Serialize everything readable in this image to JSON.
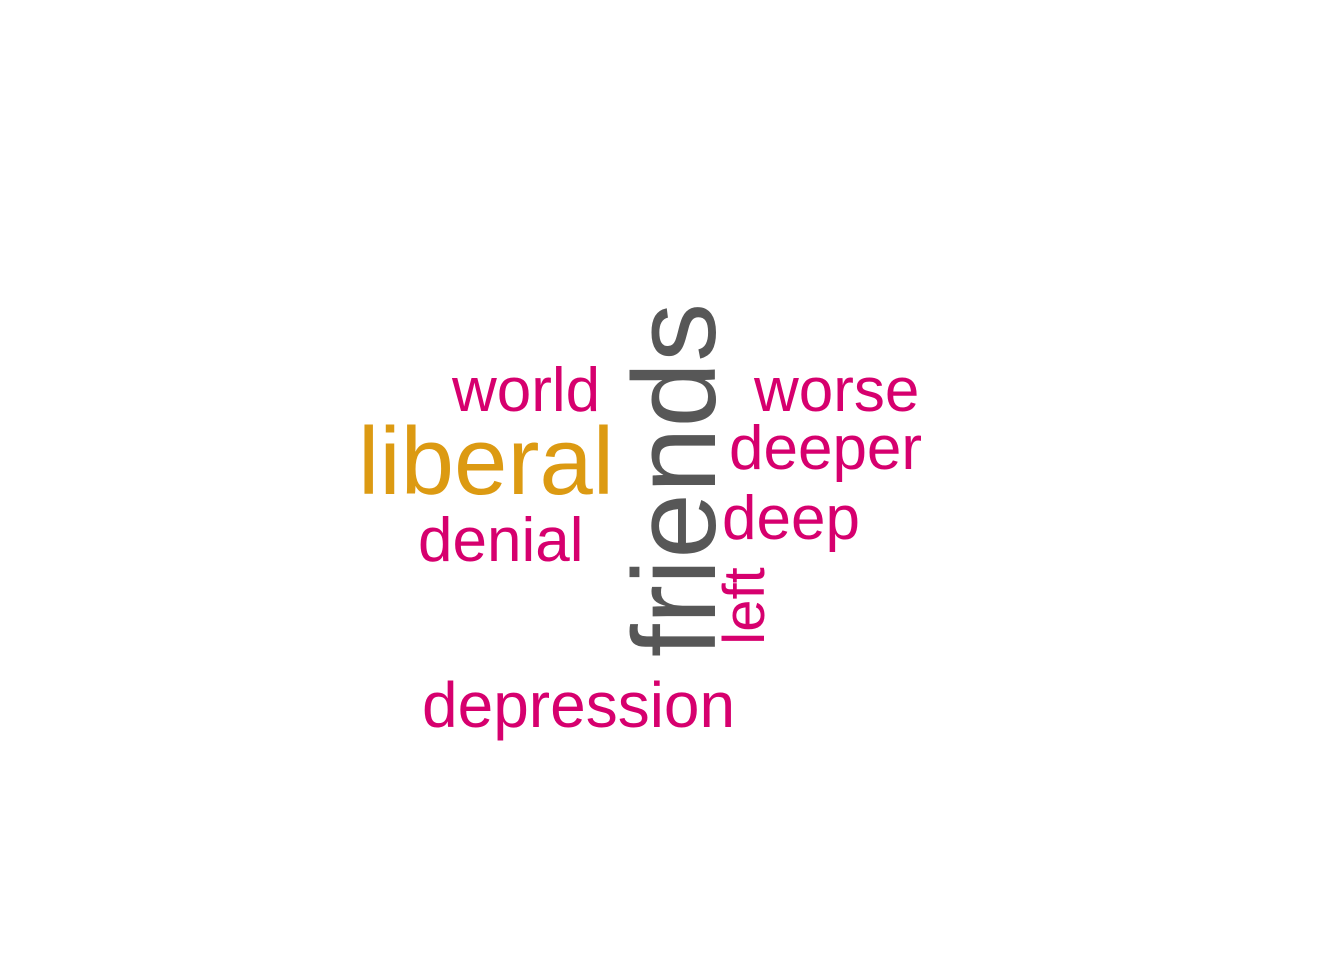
{
  "word_cloud": {
    "words": [
      {
        "text": "friends",
        "color": "#575757",
        "orientation": "vertical"
      },
      {
        "text": "liberal",
        "color": "#dc9a12",
        "orientation": "horizontal"
      },
      {
        "text": "world",
        "color": "#d6006e",
        "orientation": "horizontal"
      },
      {
        "text": "worse",
        "color": "#d6006e",
        "orientation": "horizontal"
      },
      {
        "text": "deeper",
        "color": "#d6006e",
        "orientation": "horizontal"
      },
      {
        "text": "deep",
        "color": "#d6006e",
        "orientation": "horizontal"
      },
      {
        "text": "denial",
        "color": "#d6006e",
        "orientation": "horizontal"
      },
      {
        "text": "left",
        "color": "#d6006e",
        "orientation": "vertical"
      },
      {
        "text": "depression",
        "color": "#d6006e",
        "orientation": "horizontal"
      }
    ]
  }
}
